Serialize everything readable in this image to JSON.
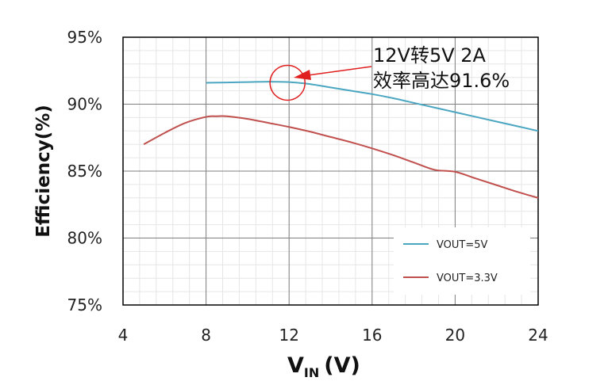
{
  "chart_data": {
    "type": "line",
    "ylabel": "Efficiency(%)",
    "xlabel_main": "V",
    "xlabel_sub": "IN",
    "xlabel_unit": "(V)",
    "xlim": [
      4,
      24
    ],
    "ylim": [
      75,
      95
    ],
    "x_ticks": [
      4,
      8,
      12,
      16,
      20,
      24
    ],
    "y_ticks": [
      95,
      90,
      85,
      80,
      75
    ],
    "x_tick_labels": [
      "4",
      "8",
      "12",
      "16",
      "20",
      "24"
    ],
    "y_tick_labels": [
      "95%",
      "90%",
      "85%",
      "80%",
      "75%"
    ],
    "grid": true,
    "series": [
      {
        "name": "VOUT=5V",
        "color": "#4aa6c1",
        "x": [
          8,
          9,
          10,
          11,
          12,
          13,
          14,
          15,
          16,
          17,
          18,
          19,
          20,
          21,
          22,
          23,
          24
        ],
        "y": [
          91.6,
          91.62,
          91.65,
          91.68,
          91.65,
          91.5,
          91.25,
          91.0,
          90.75,
          90.45,
          90.1,
          89.75,
          89.4,
          89.05,
          88.7,
          88.35,
          88.0
        ]
      },
      {
        "name": "VOUT=3.3V",
        "color": "#c0504d",
        "x": [
          5,
          6,
          7,
          8,
          8.5,
          9,
          10,
          11,
          12,
          13,
          14,
          15,
          16,
          17,
          18,
          19,
          20,
          21,
          22,
          23,
          24
        ],
        "y": [
          87.0,
          87.85,
          88.6,
          89.05,
          89.1,
          89.1,
          88.9,
          88.6,
          88.3,
          87.95,
          87.55,
          87.15,
          86.7,
          86.2,
          85.65,
          85.1,
          84.95,
          84.45,
          83.95,
          83.45,
          83.0
        ]
      }
    ],
    "annotation": {
      "line1": "12V转5V 2A",
      "line2": "效率高达91.6%",
      "x": 12,
      "y": 91.6
    },
    "legend_position": "bottom-right"
  }
}
